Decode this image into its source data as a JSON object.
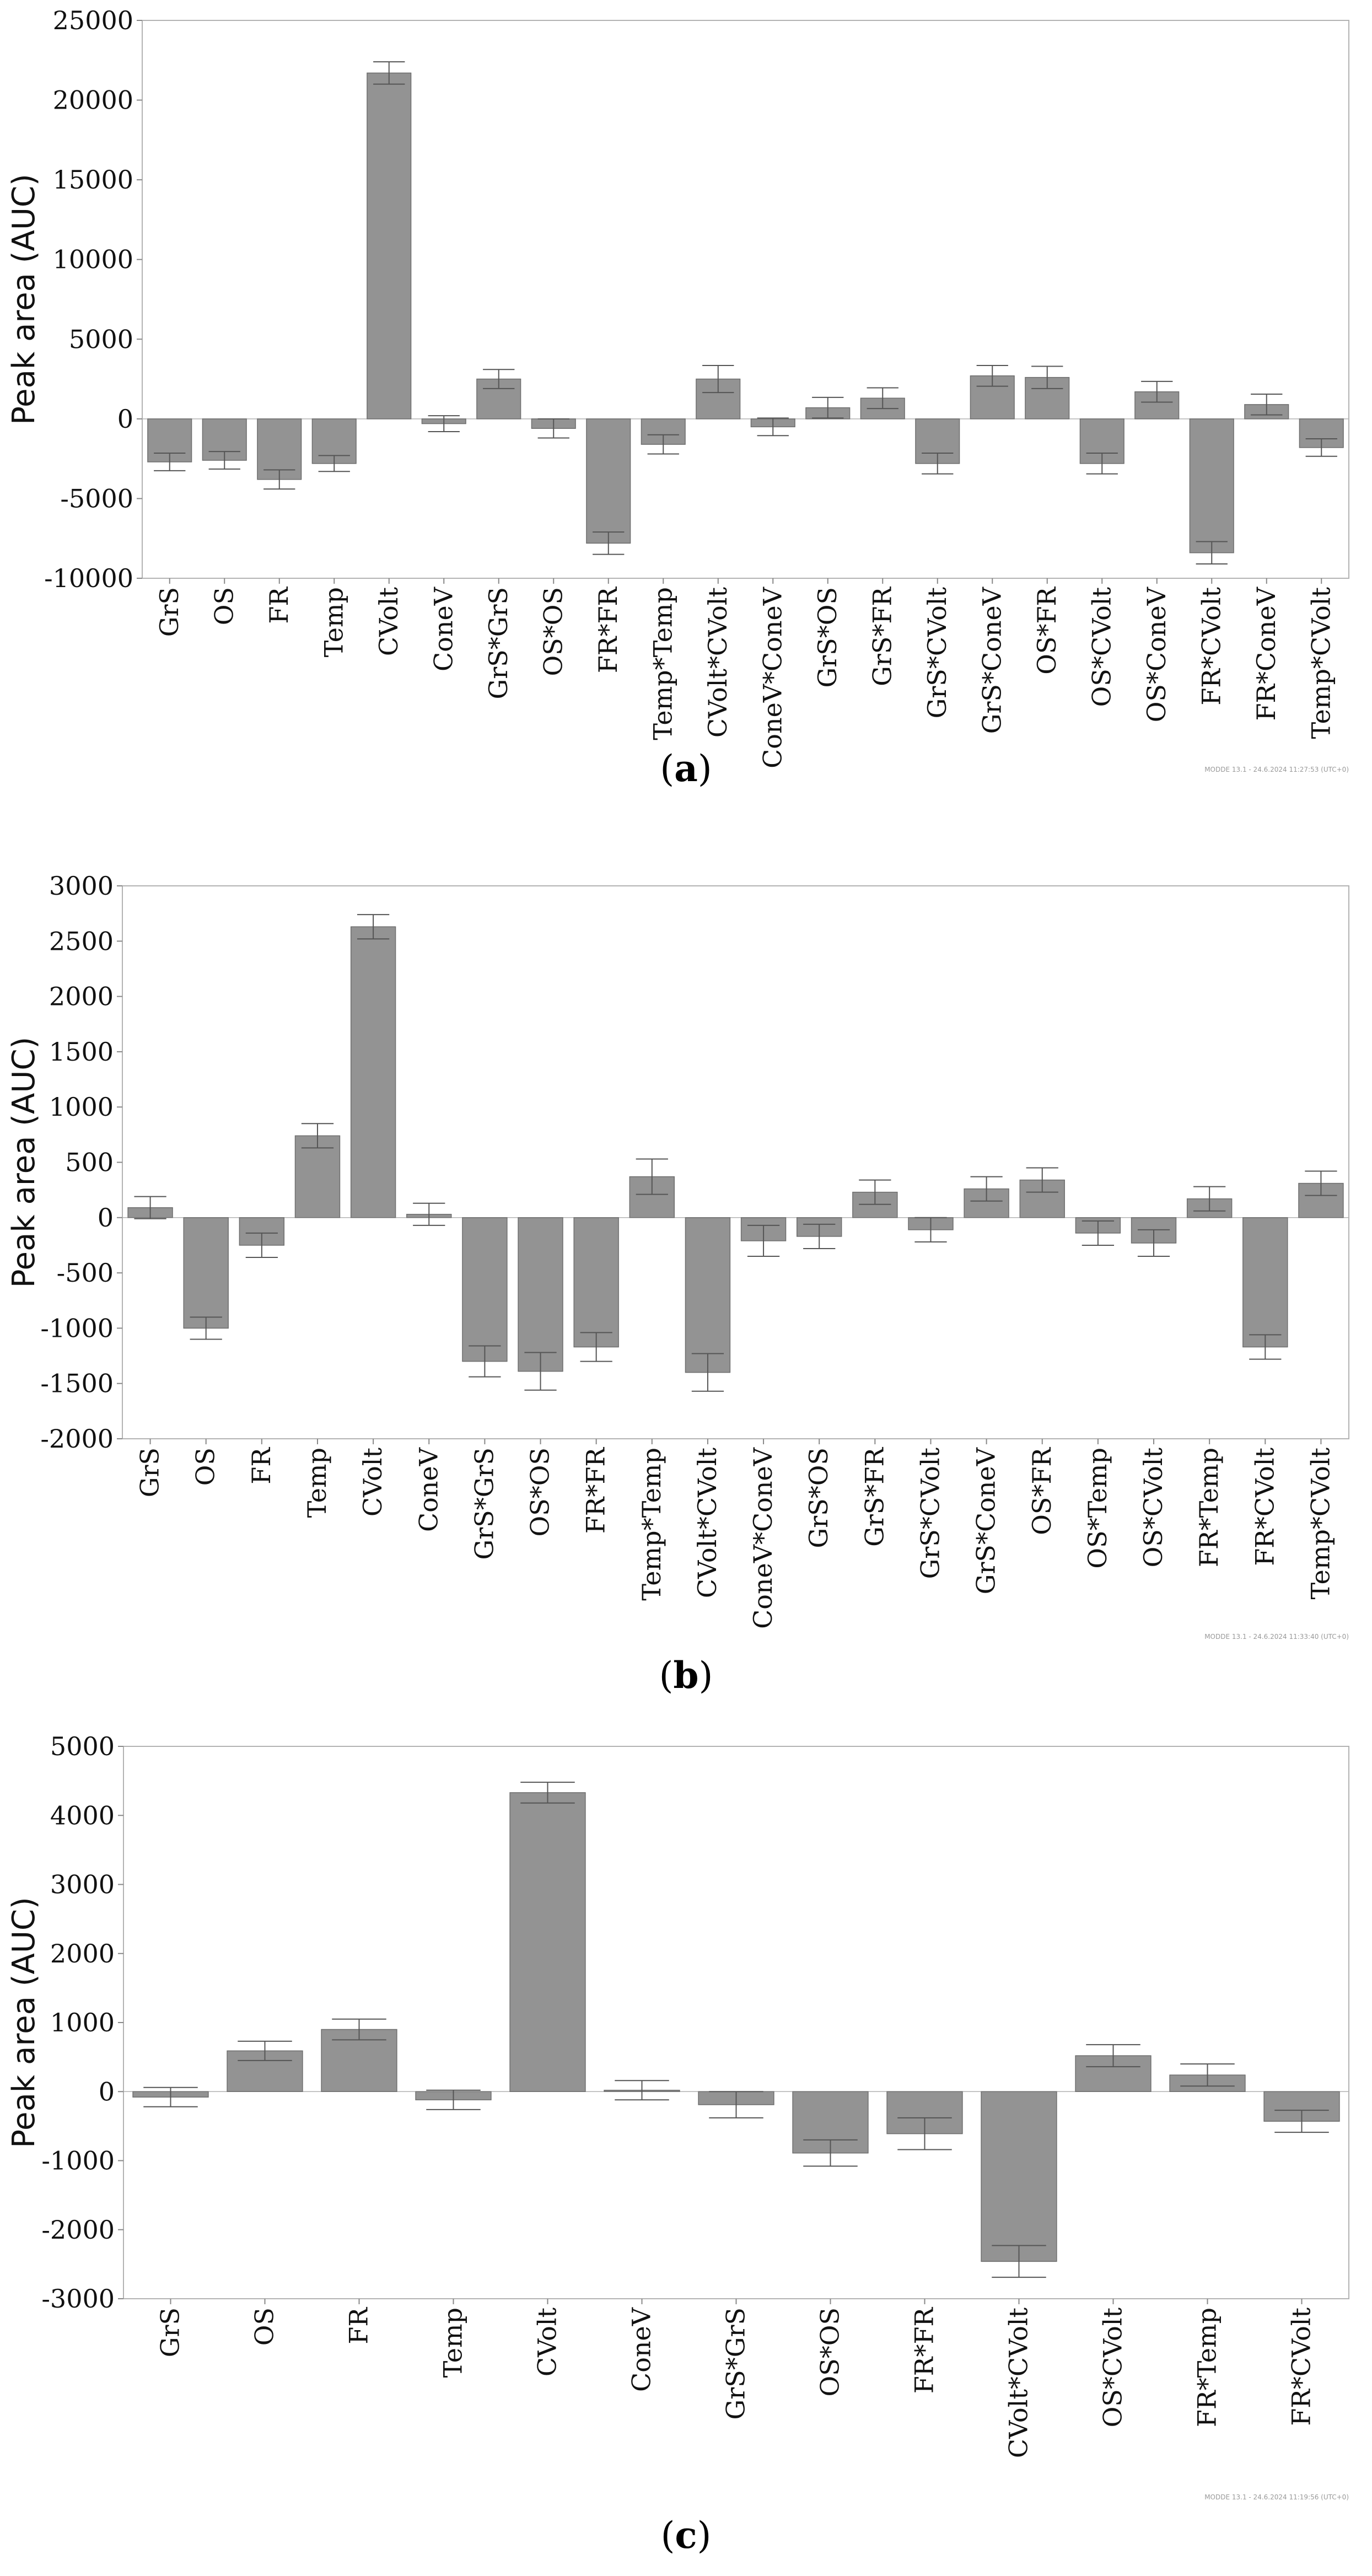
{
  "chart_data": [
    {
      "type": "bar",
      "id": "a",
      "caption_letter": "a",
      "ylabel": "Peak area (AUC)",
      "ylim": [
        -10000,
        25000
      ],
      "yticks": [
        -10000,
        -5000,
        0,
        5000,
        10000,
        15000,
        20000,
        25000
      ],
      "bar_color": "#939393",
      "stamp": "MODDE 13.1 - 24.6.2024 11:27:53 (UTC+0)",
      "categories": [
        "GrS",
        "OS",
        "FR",
        "Temp",
        "CVolt",
        "ConeV",
        "GrS*GrS",
        "OS*OS",
        "FR*FR",
        "Temp*Temp",
        "CVolt*CVolt",
        "ConeV*ConeV",
        "GrS*OS",
        "GrS*FR",
        "GrS*CVolt",
        "GrS*ConeV",
        "OS*FR",
        "OS*CVolt",
        "OS*ConeV",
        "FR*CVolt",
        "FR*ConeV",
        "Temp*CVolt"
      ],
      "values": [
        -2700,
        -2600,
        -3800,
        -2800,
        21700,
        -300,
        2500,
        -600,
        -7800,
        -1600,
        2500,
        -500,
        700,
        1300,
        -2800,
        2700,
        2600,
        -2800,
        1700,
        -8400,
        900,
        -1800
      ],
      "errors": [
        550,
        550,
        600,
        500,
        700,
        500,
        600,
        600,
        700,
        600,
        850,
        550,
        650,
        650,
        650,
        650,
        700,
        650,
        650,
        700,
        650,
        550
      ]
    },
    {
      "type": "bar",
      "id": "b",
      "caption_letter": "b",
      "ylabel": "Peak area (AUC)",
      "ylim": [
        -2000,
        3000
      ],
      "yticks": [
        -2000,
        -1500,
        -1000,
        -500,
        0,
        500,
        1000,
        1500,
        2000,
        2500,
        3000
      ],
      "bar_color": "#939393",
      "stamp": "MODDE 13.1 - 24.6.2024 11:33:40 (UTC+0)",
      "categories": [
        "GrS",
        "OS",
        "FR",
        "Temp",
        "CVolt",
        "ConeV",
        "GrS*GrS",
        "OS*OS",
        "FR*FR",
        "Temp*Temp",
        "CVolt*CVolt",
        "ConeV*ConeV",
        "GrS*OS",
        "GrS*FR",
        "GrS*CVolt",
        "GrS*ConeV",
        "OS*FR",
        "OS*Temp",
        "OS*CVolt",
        "FR*Temp",
        "FR*CVolt",
        "Temp*CVolt"
      ],
      "values": [
        90,
        -1000,
        -250,
        740,
        2630,
        30,
        -1300,
        -1390,
        -1170,
        370,
        -1400,
        -210,
        -170,
        230,
        -110,
        260,
        340,
        -140,
        -230,
        170,
        -1170,
        310
      ],
      "errors": [
        100,
        100,
        110,
        110,
        110,
        100,
        140,
        170,
        130,
        160,
        170,
        140,
        110,
        110,
        110,
        110,
        110,
        110,
        120,
        110,
        110,
        110
      ]
    },
    {
      "type": "bar",
      "id": "c",
      "caption_letter": "c",
      "ylabel": "Peak area (AUC)",
      "ylim": [
        -3000,
        5000
      ],
      "yticks": [
        -3000,
        -2000,
        -1000,
        0,
        1000,
        2000,
        3000,
        4000,
        5000
      ],
      "bar_color": "#939393",
      "stamp": "MODDE 13.1 - 24.6.2024 11:19:56 (UTC+0)",
      "categories": [
        "GrS",
        "OS",
        "FR",
        "Temp",
        "CVolt",
        "ConeV",
        "GrS*GrS",
        "OS*OS",
        "FR*FR",
        "CVolt*CVolt",
        "OS*CVolt",
        "FR*Temp",
        "FR*CVolt"
      ],
      "values": [
        -80,
        590,
        900,
        -120,
        4330,
        20,
        -190,
        -890,
        -610,
        -2460,
        520,
        240,
        -430
      ],
      "errors": [
        140,
        140,
        150,
        140,
        150,
        140,
        190,
        190,
        230,
        230,
        160,
        160,
        160
      ]
    }
  ]
}
